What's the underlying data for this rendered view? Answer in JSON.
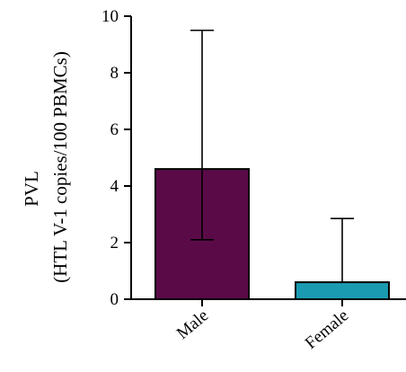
{
  "chart_data": {
    "type": "bar",
    "categories": [
      "Male",
      "Female"
    ],
    "values": [
      4.6,
      0.6
    ],
    "error_low": [
      2.1,
      0.6
    ],
    "error_high": [
      9.5,
      2.85
    ],
    "colors": [
      "#5b0a48",
      "#1b9bb2"
    ],
    "ylabel_line1": "PVL",
    "ylabel_line2": "(HTL V-1 copies/100 PBMCs)",
    "xlabel": "",
    "title": "",
    "ylim": [
      0,
      10
    ],
    "yticks": [
      "0",
      "2",
      "4",
      "6",
      "8",
      "10"
    ],
    "grid": false
  }
}
